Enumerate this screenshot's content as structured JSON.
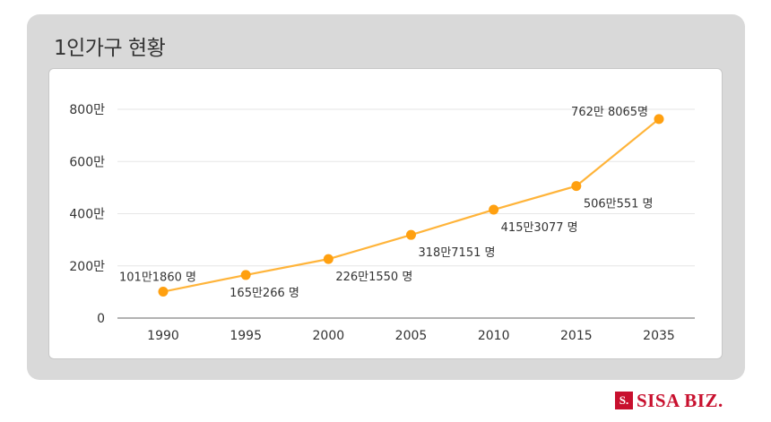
{
  "panel": {
    "title": "1인가구 현황"
  },
  "brand": {
    "mark": "S.",
    "name": "SISA BIZ."
  },
  "colors": {
    "line": "#ffb43a",
    "marker": "#ffa010",
    "grid": "#e6e6e6",
    "axis": "#999999",
    "text": "#333333"
  },
  "chart_data": {
    "type": "line",
    "title": "1인가구 현황",
    "xlabel": "",
    "ylabel": "",
    "categories": [
      "1990",
      "1995",
      "2000",
      "2005",
      "2010",
      "2015",
      "2035"
    ],
    "values": [
      1011860,
      1650266,
      2261550,
      3187151,
      4153077,
      5060551,
      7628065
    ],
    "data_labels": [
      "101만1860 명",
      "165만266 명",
      "226만1550 명",
      "318만7151 명",
      "415만3077 명",
      "506만551 명",
      "762만 8065명"
    ],
    "label_positions": [
      "above",
      "below",
      "below",
      "below",
      "below",
      "below",
      "above"
    ],
    "ylim": [
      0,
      8000000
    ],
    "yticks": [
      0,
      2000000,
      4000000,
      6000000,
      8000000
    ],
    "ytick_labels": [
      "0",
      "200만",
      "400만",
      "600만",
      "800만"
    ],
    "grid": true,
    "legend": "none"
  }
}
